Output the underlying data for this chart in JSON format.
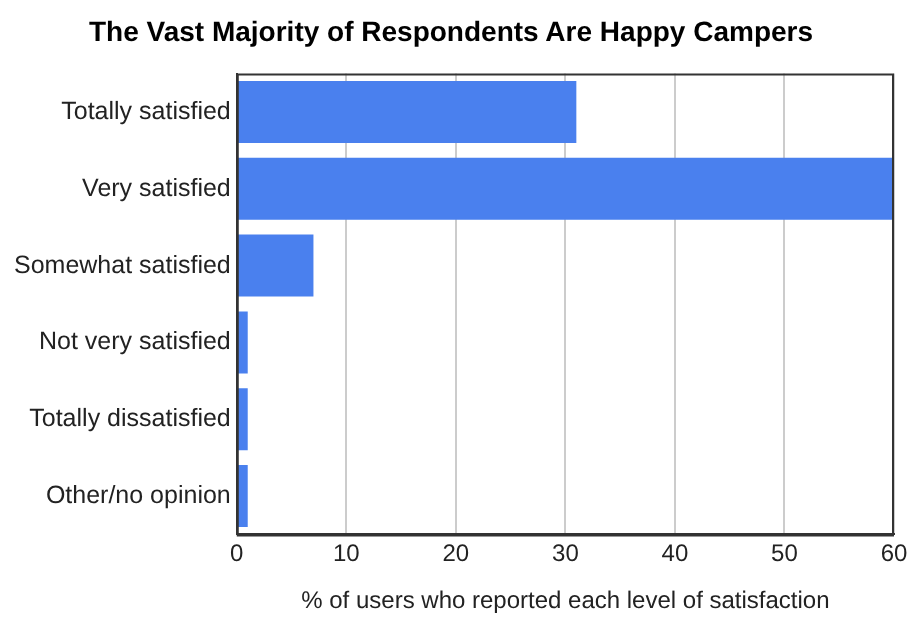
{
  "chart_data": {
    "type": "bar",
    "orientation": "horizontal",
    "title": "The Vast Majority of Respondents Are Happy Campers",
    "xlabel": "% of users who reported each level of satisfaction",
    "categories": [
      "Totally satisfied",
      "Very satisfied",
      "Somewhat satisfied",
      "Not very satisfied",
      "Totally dissatisfied",
      "Other/no opinion"
    ],
    "values": [
      31,
      60,
      7,
      1,
      1,
      1
    ],
    "color": "#4a80ee",
    "xlim": [
      0,
      60
    ],
    "xticks": [
      0,
      10,
      20,
      30,
      40,
      50,
      60
    ],
    "grid": "x",
    "legend": false
  }
}
